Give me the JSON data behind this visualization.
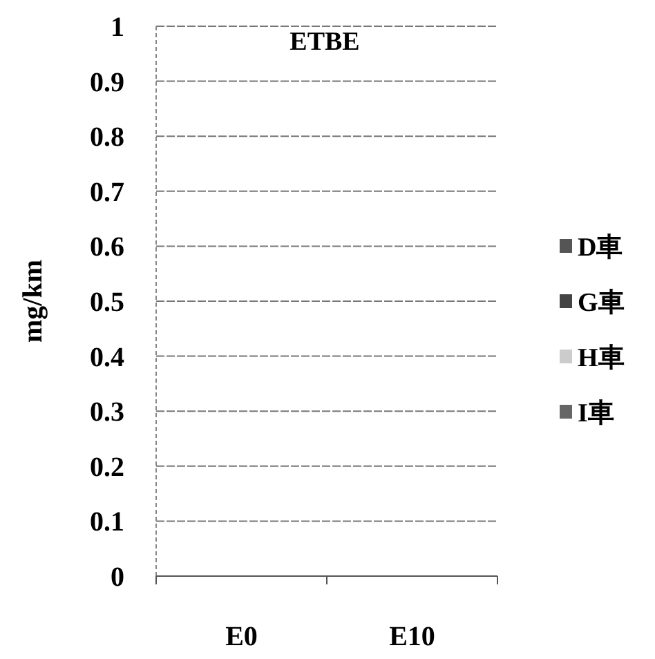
{
  "chart_data": {
    "type": "bar",
    "title": "ETBE",
    "ylabel": "mg/km",
    "categories": [
      "E0",
      "E10"
    ],
    "series": [
      {
        "name": "D車",
        "color": "#555555",
        "values": [
          0,
          0
        ]
      },
      {
        "name": "G車",
        "color": "#444444",
        "values": [
          0,
          0
        ]
      },
      {
        "name": "H車",
        "color": "#cccccc",
        "values": [
          0,
          0
        ]
      },
      {
        "name": "I車",
        "color": "#666666",
        "values": [
          0,
          0
        ]
      }
    ],
    "ylim": [
      0,
      1
    ],
    "yticks": [
      0,
      0.1,
      0.2,
      0.3,
      0.4,
      0.5,
      0.6,
      0.7,
      0.8,
      0.9,
      1
    ],
    "grid": "y",
    "legend": "right"
  }
}
